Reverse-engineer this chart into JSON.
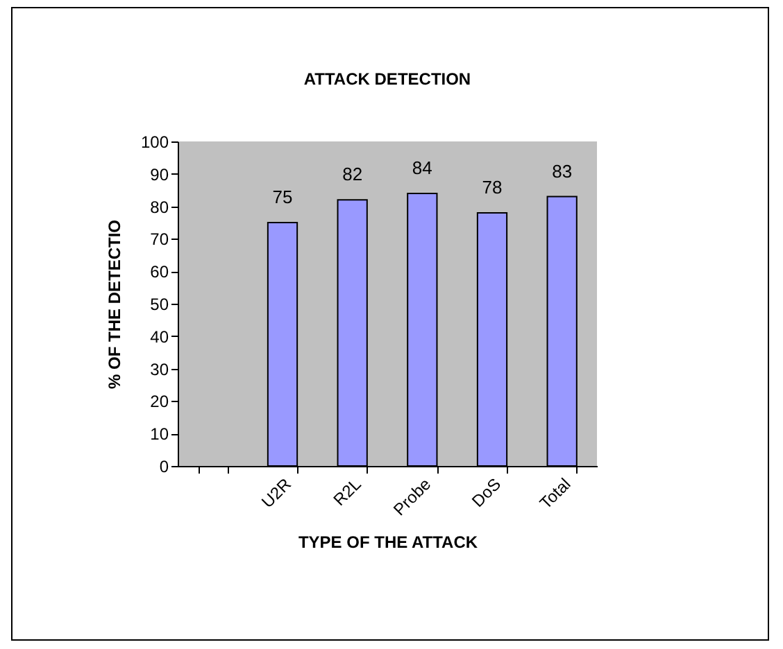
{
  "chart_data": {
    "type": "bar",
    "title": "ATTACK DETECTION",
    "xlabel": "TYPE OF THE ATTACK",
    "ylabel": "% OF THE DETECTIO",
    "categories": [
      null,
      "U2R",
      "R2L",
      "Probe",
      "DoS",
      "Total"
    ],
    "values": [
      null,
      75,
      82,
      84,
      78,
      83
    ],
    "color": "#9999ff",
    "ylim": [
      0,
      100
    ],
    "yticks": [
      0,
      10,
      20,
      30,
      40,
      50,
      60,
      70,
      80,
      90,
      100
    ],
    "data_labels": true
  }
}
